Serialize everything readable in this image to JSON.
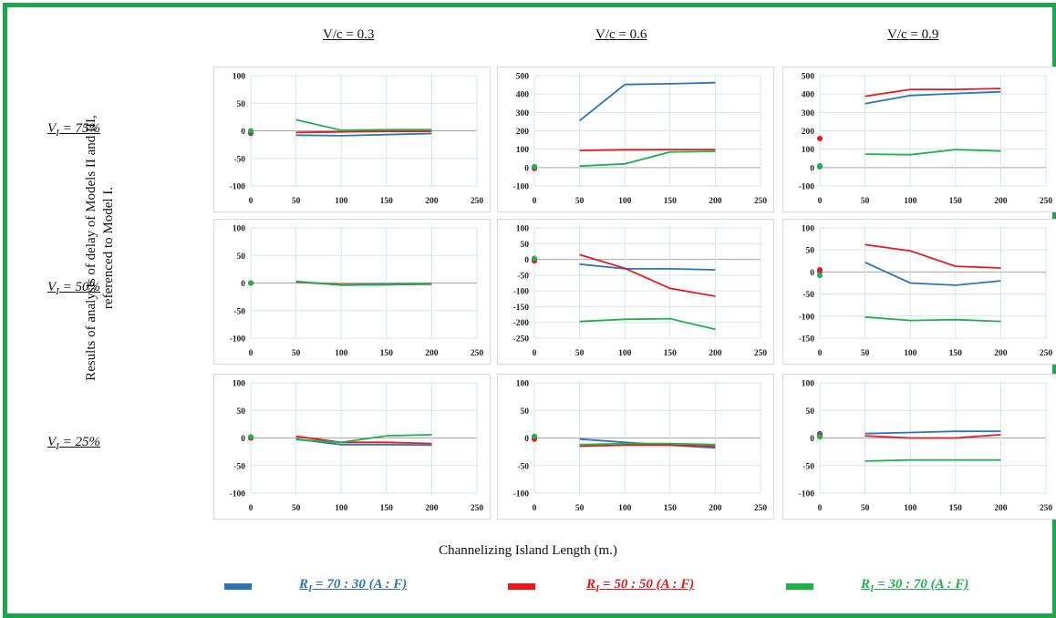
{
  "column_titles": [
    "V/c = 0.3",
    "V/c = 0.6",
    "V/c = 0.9"
  ],
  "row_labels": [
    {
      "symbol": "V",
      "sub": "I",
      "rest": " = 75%"
    },
    {
      "symbol": "V",
      "sub": "I",
      "rest": " = 50%"
    },
    {
      "symbol": "V",
      "sub": "I",
      "rest": " = 25%"
    }
  ],
  "ylabel": "Results of analysis of delay of Models II and III, referenced to Model I.",
  "xlabel": "Channelizing Island Length (m.)",
  "legend": [
    {
      "symbol": "R",
      "sub": "I",
      "rest": " = 70 : 30 (A : F)",
      "color": "#2e75b6"
    },
    {
      "symbol": "R",
      "sub": "I",
      "rest": " = 50 : 50 (A : F)",
      "color": "#e8191e"
    },
    {
      "symbol": "R",
      "sub": "I",
      "rest": " = 30 : 70 (A : F)",
      "color": "#21b04b"
    }
  ],
  "colors": {
    "frame": "#1aa84a",
    "series_blue": "#2e75b6",
    "series_red": "#e8191e",
    "series_green": "#21b04b",
    "grid": "#d7e6e6"
  },
  "chart_data": [
    {
      "type": "line",
      "x": [
        0,
        50,
        100,
        150,
        200
      ],
      "xlim": [
        0,
        250
      ],
      "xticks": [
        0,
        50,
        100,
        150,
        200,
        250
      ],
      "ylim": [
        -100,
        100
      ],
      "yticks": [
        -100,
        -50,
        0,
        50,
        100
      ],
      "grid": true,
      "series": [
        {
          "color": "#2e75b6",
          "values": [
            -5,
            -8,
            -9,
            -7,
            -5
          ]
        },
        {
          "color": "#e8191e",
          "values": [
            -2,
            -3,
            -2,
            -1,
            -1
          ]
        },
        {
          "color": "#21b04b",
          "values": [
            0,
            20,
            1,
            2,
            2
          ]
        }
      ]
    },
    {
      "type": "line",
      "x": [
        0,
        50,
        100,
        150,
        200
      ],
      "xlim": [
        0,
        250
      ],
      "xticks": [
        0,
        50,
        100,
        150,
        200,
        250
      ],
      "ylim": [
        -100,
        500
      ],
      "yticks": [
        -100,
        0,
        100,
        200,
        300,
        400,
        500
      ],
      "grid": true,
      "series": [
        {
          "color": "#2e75b6",
          "values": [
            0,
            255,
            452,
            456,
            462
          ]
        },
        {
          "color": "#e8191e",
          "values": [
            -5,
            93,
            97,
            98,
            98
          ]
        },
        {
          "color": "#21b04b",
          "values": [
            5,
            8,
            20,
            85,
            88
          ]
        }
      ]
    },
    {
      "type": "line",
      "x": [
        0,
        50,
        100,
        150,
        200
      ],
      "xlim": [
        0,
        250
      ],
      "xticks": [
        0,
        50,
        100,
        150,
        200,
        250
      ],
      "ylim": [
        -100,
        500
      ],
      "yticks": [
        -100,
        0,
        100,
        200,
        300,
        400,
        500
      ],
      "grid": true,
      "series": [
        {
          "color": "#2e75b6",
          "values": [
            5,
            348,
            392,
            403,
            412
          ]
        },
        {
          "color": "#e8191e",
          "values": [
            158,
            388,
            425,
            425,
            430
          ]
        },
        {
          "color": "#21b04b",
          "values": [
            10,
            73,
            70,
            98,
            90
          ]
        }
      ]
    },
    {
      "type": "line",
      "x": [
        0,
        50,
        100,
        150,
        200
      ],
      "xlim": [
        0,
        250
      ],
      "xticks": [
        0,
        50,
        100,
        150,
        200,
        250
      ],
      "ylim": [
        -100,
        100
      ],
      "yticks": [
        -100,
        -50,
        0,
        50,
        100
      ],
      "grid": true,
      "series": [
        {
          "color": "#2e75b6",
          "values": [
            0,
            2,
            -3,
            -2,
            -1
          ]
        },
        {
          "color": "#e8191e",
          "values": [
            0,
            2,
            -3,
            -3,
            -2
          ]
        },
        {
          "color": "#21b04b",
          "values": [
            0,
            3,
            -4,
            -3,
            -1
          ]
        }
      ]
    },
    {
      "type": "line",
      "x": [
        0,
        50,
        100,
        150,
        200
      ],
      "xlim": [
        0,
        250
      ],
      "xticks": [
        0,
        50,
        100,
        150,
        200,
        250
      ],
      "ylim": [
        -250,
        100
      ],
      "yticks": [
        -250,
        -200,
        -150,
        -100,
        -50,
        0,
        50,
        100
      ],
      "grid": true,
      "series": [
        {
          "color": "#2e75b6",
          "values": [
            0,
            -15,
            -30,
            -30,
            -33
          ]
        },
        {
          "color": "#e8191e",
          "values": [
            -5,
            15,
            -28,
            -92,
            -117
          ]
        },
        {
          "color": "#21b04b",
          "values": [
            3,
            -197,
            -190,
            -188,
            -222
          ]
        }
      ]
    },
    {
      "type": "line",
      "x": [
        0,
        50,
        100,
        150,
        200
      ],
      "xlim": [
        0,
        250
      ],
      "xticks": [
        0,
        50,
        100,
        150,
        200,
        250
      ],
      "ylim": [
        -150,
        100
      ],
      "yticks": [
        -150,
        -100,
        -50,
        0,
        50,
        100
      ],
      "grid": true,
      "series": [
        {
          "color": "#2e75b6",
          "values": [
            0,
            22,
            -25,
            -30,
            -20
          ]
        },
        {
          "color": "#e8191e",
          "values": [
            5,
            62,
            48,
            13,
            9
          ]
        },
        {
          "color": "#21b04b",
          "values": [
            -8,
            -102,
            -110,
            -108,
            -112
          ]
        }
      ]
    },
    {
      "type": "line",
      "x": [
        0,
        50,
        100,
        150,
        200
      ],
      "xlim": [
        0,
        250
      ],
      "xticks": [
        0,
        50,
        100,
        150,
        200,
        250
      ],
      "ylim": [
        -100,
        100
      ],
      "yticks": [
        -100,
        -50,
        0,
        50,
        100
      ],
      "grid": true,
      "series": [
        {
          "color": "#2e75b6",
          "values": [
            0,
            -2,
            -12,
            -12,
            -13
          ]
        },
        {
          "color": "#e8191e",
          "values": [
            0,
            3,
            -8,
            -8,
            -10
          ]
        },
        {
          "color": "#21b04b",
          "values": [
            2,
            -3,
            -8,
            4,
            6
          ]
        }
      ]
    },
    {
      "type": "line",
      "x": [
        0,
        50,
        100,
        150,
        200
      ],
      "xlim": [
        0,
        250
      ],
      "xticks": [
        0,
        50,
        100,
        150,
        200,
        250
      ],
      "ylim": [
        -100,
        100
      ],
      "yticks": [
        -100,
        -50,
        0,
        50,
        100
      ],
      "grid": true,
      "series": [
        {
          "color": "#2e75b6",
          "values": [
            0,
            -2,
            -8,
            -13,
            -18
          ]
        },
        {
          "color": "#e8191e",
          "values": [
            -2,
            -15,
            -13,
            -13,
            -15
          ]
        },
        {
          "color": "#21b04b",
          "values": [
            3,
            -12,
            -10,
            -10,
            -12
          ]
        }
      ]
    },
    {
      "type": "line",
      "x": [
        0,
        50,
        100,
        150,
        200
      ],
      "xlim": [
        0,
        250
      ],
      "xticks": [
        0,
        50,
        100,
        150,
        200,
        250
      ],
      "ylim": [
        -100,
        100
      ],
      "yticks": [
        -100,
        -50,
        0,
        50,
        100
      ],
      "grid": true,
      "series": [
        {
          "color": "#2e75b6",
          "values": [
            8,
            8,
            10,
            12,
            12
          ]
        },
        {
          "color": "#e8191e",
          "values": [
            5,
            4,
            0,
            0,
            6
          ]
        },
        {
          "color": "#21b04b",
          "values": [
            2,
            -42,
            -40,
            -40,
            -40
          ]
        }
      ]
    }
  ]
}
